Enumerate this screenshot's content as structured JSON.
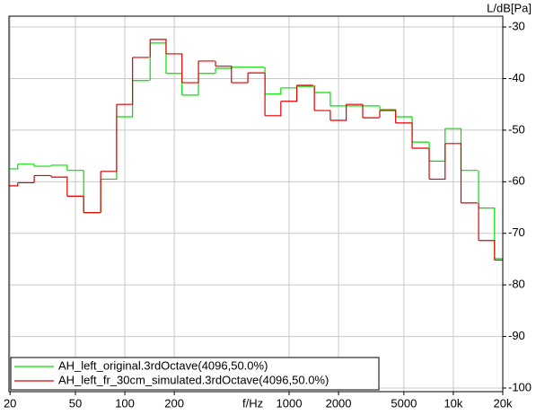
{
  "chart_data": {
    "type": "step",
    "y_label": "L/dB[Pa]",
    "x_label": "f/Hz",
    "log_x": true,
    "grid": true,
    "legend": "lower left",
    "x": [
      20,
      25,
      31.5,
      40,
      50,
      63,
      80,
      100,
      125,
      160,
      200,
      250,
      315,
      400,
      500,
      630,
      800,
      1000,
      1250,
      1600,
      2000,
      2500,
      3150,
      4000,
      5000,
      6300,
      8000,
      10000,
      12500,
      16000,
      20000
    ],
    "series": [
      {
        "name": "AH_left_original.3rdOctave(4096,50.0%)",
        "color": "#00e000",
        "values": [
          -57.5,
          -56.6,
          -57,
          -56.8,
          -57.8,
          -66,
          -59.5,
          -47.4,
          -40.4,
          -33.1,
          -39,
          -43.2,
          -39,
          -38,
          -37.8,
          -37.8,
          -43,
          -41.8,
          -41.5,
          -42.7,
          -45.3,
          -45.3,
          -45.3,
          -46,
          -47.4,
          -52.3,
          -56,
          -49.7,
          -57.8,
          -65.1,
          -74.9
        ]
      },
      {
        "name": "AH_left_fr_30cm_simulated.3rdOctave(4096,50.0%)",
        "color": "#e00000",
        "values": [
          -60.8,
          -60.2,
          -58.8,
          -59.1,
          -62.8,
          -66,
          -58,
          -45,
          -35.9,
          -32.4,
          -35.2,
          -40.8,
          -36.6,
          -37.6,
          -40.8,
          -38.9,
          -47.2,
          -44.4,
          -41.3,
          -46.2,
          -48.1,
          -45,
          -47.6,
          -46.2,
          -48.6,
          -53.5,
          -59.5,
          -52.6,
          -64.1,
          -71.4,
          -75.2
        ]
      }
    ],
    "xlim": [
      19.7,
      20000
    ],
    "ylim": [
      -100.7,
      -27.9
    ],
    "xticks": [
      20,
      50,
      100,
      200,
      1000,
      2000,
      5000,
      {
        "value": 10000,
        "label": "10k"
      },
      {
        "value": 20000,
        "label": "20k"
      }
    ],
    "yticks": [
      -30,
      -40,
      -50,
      -60,
      -70,
      -80,
      -90,
      -100
    ]
  }
}
